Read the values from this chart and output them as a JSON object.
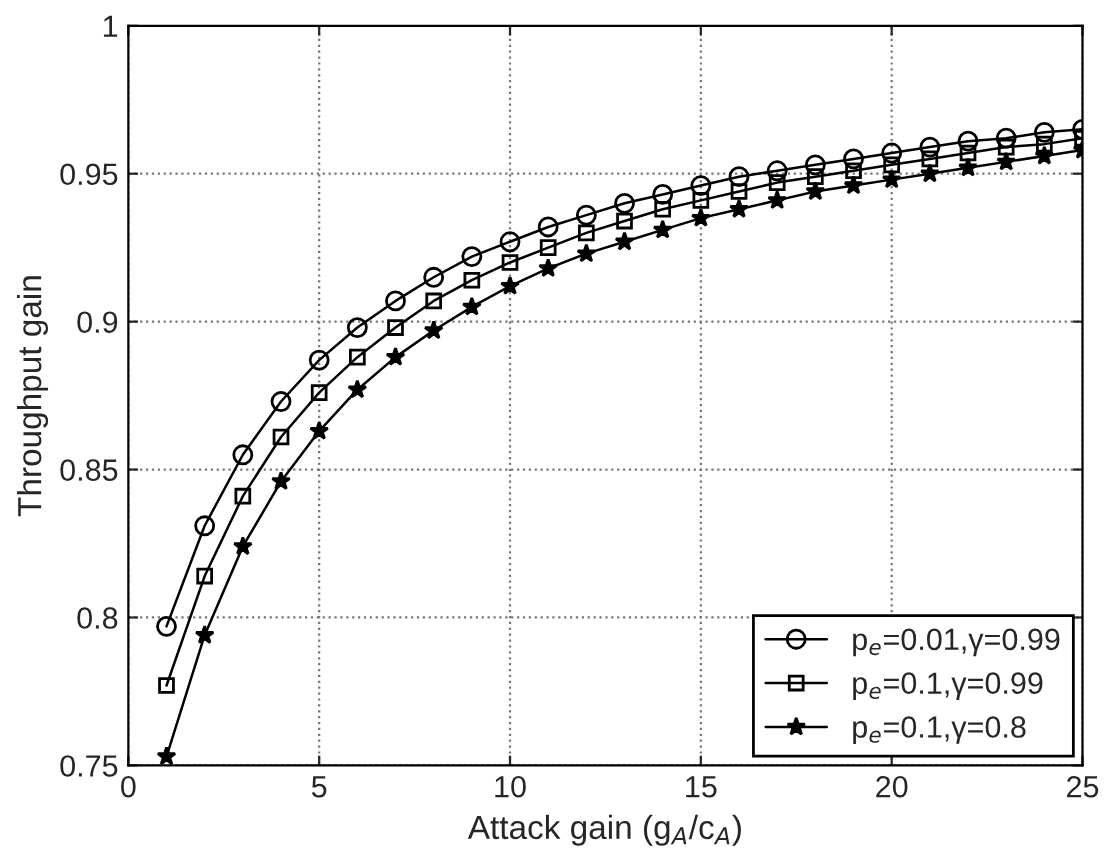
{
  "chart_data": {
    "type": "line",
    "xlabel": "Attack gain (g$_{A}$/c$_{A}$)",
    "ylabel": "Throughput gain",
    "x": [
      1,
      2,
      3,
      4,
      5,
      6,
      7,
      8,
      9,
      10,
      11,
      12,
      13,
      14,
      15,
      16,
      17,
      18,
      19,
      20,
      21,
      22,
      23,
      24,
      25
    ],
    "series": [
      {
        "name": "p$_{e}$=0.01,γ=0.99",
        "color": "#000000",
        "marker": "circle",
        "values": [
          0.797,
          0.831,
          0.855,
          0.873,
          0.887,
          0.898,
          0.907,
          0.915,
          0.922,
          0.927,
          0.932,
          0.936,
          0.94,
          0.943,
          0.946,
          0.949,
          0.951,
          0.953,
          0.955,
          0.957,
          0.959,
          0.961,
          0.962,
          0.964,
          0.965
        ]
      },
      {
        "name": "p$_{e}$=0.1,γ=0.99",
        "color": "#000000",
        "marker": "square",
        "values": [
          0.777,
          0.814,
          0.841,
          0.861,
          0.876,
          0.888,
          0.898,
          0.907,
          0.914,
          0.92,
          0.925,
          0.93,
          0.934,
          0.938,
          0.941,
          0.944,
          0.947,
          0.949,
          0.951,
          0.953,
          0.955,
          0.957,
          0.959,
          0.96,
          0.962
        ]
      },
      {
        "name": "p$_{e}$=0.1,γ=0.8",
        "color": "#000000",
        "marker": "star",
        "values": [
          0.753,
          0.794,
          0.824,
          0.846,
          0.863,
          0.877,
          0.888,
          0.897,
          0.905,
          0.912,
          0.918,
          0.923,
          0.927,
          0.931,
          0.935,
          0.938,
          0.941,
          0.944,
          0.946,
          0.948,
          0.95,
          0.952,
          0.954,
          0.956,
          0.958
        ]
      }
    ],
    "xlim": [
      0,
      25
    ],
    "xticks": [
      0,
      5,
      10,
      15,
      20,
      25
    ],
    "ylim": [
      0.75,
      1
    ],
    "yticks": [
      0.75,
      0.8,
      0.85,
      0.9,
      0.95,
      1
    ],
    "grid": true,
    "legend": "bottom right",
    "line_style": "solid"
  }
}
